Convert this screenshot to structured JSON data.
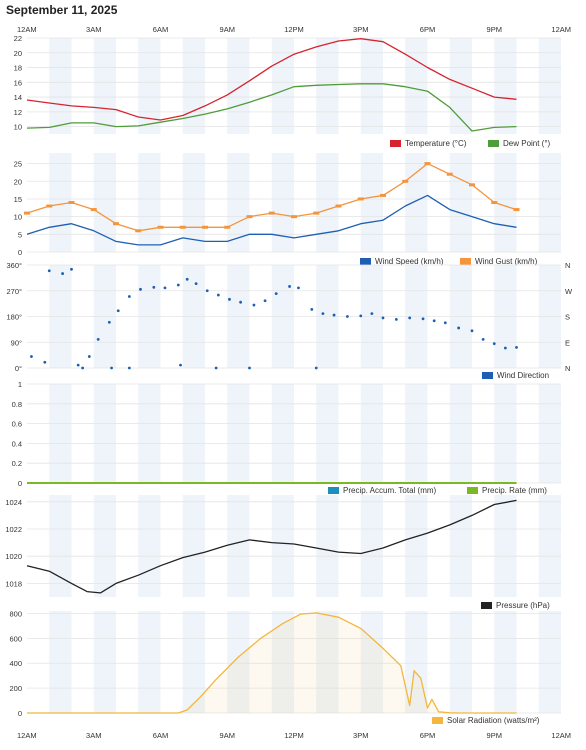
{
  "page_title": "September 11, 2025",
  "x_ticks": [
    "12AM",
    "3AM",
    "6AM",
    "9AM",
    "12PM",
    "3PM",
    "6PM",
    "9PM",
    "12AM"
  ],
  "colors": {
    "temperature": "#d6242f",
    "dew_point": "#4f9c3a",
    "wind_speed": "#1e5fb4",
    "wind_gust": "#f5943b",
    "wind_direction": "#1e5fb4",
    "precip_total": "#1d8fbf",
    "precip_rate": "#7ab828",
    "pressure": "#222222",
    "solar": "#f4b63b",
    "band": "#eef4fa",
    "grid": "#e4e4e4"
  },
  "chart_data": [
    {
      "type": "line",
      "x_unit": "hour",
      "ylim": [
        9,
        22
      ],
      "y_ticks": [
        "10",
        "12",
        "14",
        "16",
        "18",
        "20",
        "22"
      ],
      "series": [
        {
          "name": "Temperature (°C)",
          "color_key": "temperature",
          "points": [
            [
              0,
              13.6
            ],
            [
              1,
              13.2
            ],
            [
              2,
              12.8
            ],
            [
              3,
              12.6
            ],
            [
              4,
              12.3
            ],
            [
              5,
              11.3
            ],
            [
              6,
              10.9
            ],
            [
              7,
              11.5
            ],
            [
              8,
              12.8
            ],
            [
              9,
              14.3
            ],
            [
              10,
              16.2
            ],
            [
              11,
              18.2
            ],
            [
              12,
              19.8
            ],
            [
              13,
              20.8
            ],
            [
              14,
              21.6
            ],
            [
              15,
              21.9
            ],
            [
              16,
              21.5
            ],
            [
              17,
              19.8
            ],
            [
              18,
              18.0
            ],
            [
              19,
              16.4
            ],
            [
              20,
              15.2
            ],
            [
              21,
              14.0
            ],
            [
              22,
              13.7
            ]
          ]
        },
        {
          "name": "Dew Point (°)",
          "color_key": "dew_point",
          "points": [
            [
              0,
              9.8
            ],
            [
              1,
              9.9
            ],
            [
              2,
              10.5
            ],
            [
              3,
              10.5
            ],
            [
              4,
              10.0
            ],
            [
              5,
              10.1
            ],
            [
              6,
              10.6
            ],
            [
              7,
              11.1
            ],
            [
              8,
              11.7
            ],
            [
              9,
              12.4
            ],
            [
              10,
              13.3
            ],
            [
              11,
              14.3
            ],
            [
              12,
              15.4
            ],
            [
              13,
              15.6
            ],
            [
              14,
              15.7
            ],
            [
              15,
              15.8
            ],
            [
              16,
              15.8
            ],
            [
              17,
              15.4
            ],
            [
              18,
              14.8
            ],
            [
              19,
              12.6
            ],
            [
              20,
              9.4
            ],
            [
              21,
              9.9
            ],
            [
              22,
              10.0
            ]
          ]
        }
      ]
    },
    {
      "type": "line",
      "x_unit": "hour",
      "ylim": [
        0,
        28
      ],
      "y_ticks": [
        "0",
        "5",
        "10",
        "15",
        "20",
        "25"
      ],
      "series": [
        {
          "name": "Wind Speed (km/h)",
          "color_key": "wind_speed",
          "points": [
            [
              0,
              5
            ],
            [
              1,
              7
            ],
            [
              2,
              8
            ],
            [
              3,
              6
            ],
            [
              4,
              3
            ],
            [
              5,
              2
            ],
            [
              6,
              2
            ],
            [
              7,
              4
            ],
            [
              8,
              3
            ],
            [
              9,
              3
            ],
            [
              10,
              5
            ],
            [
              11,
              5
            ],
            [
              12,
              4
            ],
            [
              13,
              5
            ],
            [
              14,
              6
            ],
            [
              15,
              8
            ],
            [
              16,
              9
            ],
            [
              17,
              13
            ],
            [
              18,
              16
            ],
            [
              19,
              12
            ],
            [
              20,
              10
            ],
            [
              21,
              8
            ],
            [
              22,
              7
            ]
          ]
        },
        {
          "name": "Wind Gust (km/h)",
          "color_key": "wind_gust",
          "points": [
            [
              0,
              11
            ],
            [
              1,
              13
            ],
            [
              2,
              14
            ],
            [
              3,
              12
            ],
            [
              4,
              8
            ],
            [
              5,
              6
            ],
            [
              6,
              7
            ],
            [
              7,
              7
            ],
            [
              8,
              7
            ],
            [
              9,
              7
            ],
            [
              10,
              10
            ],
            [
              11,
              11
            ],
            [
              12,
              10
            ],
            [
              13,
              11
            ],
            [
              14,
              13
            ],
            [
              15,
              15
            ],
            [
              16,
              16
            ],
            [
              17,
              20
            ],
            [
              18,
              25
            ],
            [
              19,
              22
            ],
            [
              20,
              19
            ],
            [
              21,
              14
            ],
            [
              22,
              12
            ]
          ]
        }
      ]
    },
    {
      "type": "scatter",
      "x_unit": "hour",
      "ylim": [
        0,
        360
      ],
      "y_ticks": [
        "0°",
        "90°",
        "180°",
        "270°",
        "360°"
      ],
      "y2_ticks": [
        "N",
        "E",
        "S",
        "W",
        "N"
      ],
      "series": [
        {
          "name": "Wind Direction",
          "color_key": "wind_direction",
          "points": [
            [
              0.2,
              40
            ],
            [
              0.8,
              20
            ],
            [
              1.0,
              340
            ],
            [
              1.6,
              330
            ],
            [
              2.0,
              345
            ],
            [
              2.3,
              10
            ],
            [
              2.8,
              40
            ],
            [
              3.2,
              100
            ],
            [
              3.7,
              160
            ],
            [
              4.1,
              200
            ],
            [
              4.6,
              250
            ],
            [
              5.1,
              275
            ],
            [
              5.7,
              282
            ],
            [
              6.2,
              280
            ],
            [
              6.8,
              290
            ],
            [
              7.2,
              310
            ],
            [
              7.6,
              295
            ],
            [
              8.1,
              270
            ],
            [
              8.6,
              255
            ],
            [
              9.1,
              240
            ],
            [
              9.6,
              230
            ],
            [
              10.2,
              220
            ],
            [
              10.7,
              235
            ],
            [
              11.2,
              260
            ],
            [
              11.8,
              285
            ],
            [
              12.2,
              280
            ],
            [
              12.8,
              205
            ],
            [
              13.3,
              190
            ],
            [
              13.8,
              185
            ],
            [
              14.4,
              180
            ],
            [
              15.0,
              182
            ],
            [
              15.5,
              190
            ],
            [
              16.0,
              175
            ],
            [
              16.6,
              170
            ],
            [
              17.2,
              175
            ],
            [
              17.8,
              172
            ],
            [
              18.3,
              165
            ],
            [
              18.8,
              158
            ],
            [
              19.4,
              140
            ],
            [
              20.0,
              130
            ],
            [
              20.5,
              100
            ],
            [
              21.0,
              85
            ],
            [
              21.5,
              70
            ],
            [
              22.0,
              72
            ],
            [
              2.5,
              0
            ],
            [
              3.8,
              0
            ],
            [
              4.6,
              0
            ],
            [
              6.9,
              10
            ],
            [
              8.5,
              0
            ],
            [
              10.0,
              0
            ],
            [
              13.0,
              0
            ]
          ]
        }
      ]
    },
    {
      "type": "line",
      "x_unit": "hour",
      "ylim": [
        0,
        1
      ],
      "y_ticks": [
        "0",
        "0.2",
        "0.4",
        "0.6",
        "0.8",
        "1"
      ],
      "series": [
        {
          "name": "Precip. Accum. Total (mm)",
          "color_key": "precip_total",
          "points": [
            [
              0,
              0
            ],
            [
              22,
              0
            ]
          ]
        },
        {
          "name": "Precip. Rate (mm)",
          "color_key": "precip_rate",
          "points": [
            [
              0,
              0
            ],
            [
              22,
              0
            ]
          ]
        }
      ]
    },
    {
      "type": "line",
      "x_unit": "hour",
      "ylim": [
        1017,
        1024.5
      ],
      "y_ticks": [
        "1018",
        "1020",
        "1022",
        "1024"
      ],
      "series": [
        {
          "name": "Pressure (hPa)",
          "color_key": "pressure",
          "points": [
            [
              0,
              1019.3
            ],
            [
              1,
              1018.9
            ],
            [
              2,
              1018.0
            ],
            [
              2.7,
              1017.4
            ],
            [
              3.3,
              1017.3
            ],
            [
              4,
              1018.0
            ],
            [
              5,
              1018.6
            ],
            [
              6,
              1019.3
            ],
            [
              7,
              1019.9
            ],
            [
              8,
              1020.3
            ],
            [
              9,
              1020.8
            ],
            [
              10,
              1021.2
            ],
            [
              11,
              1021.0
            ],
            [
              12,
              1020.9
            ],
            [
              13,
              1020.6
            ],
            [
              14,
              1020.3
            ],
            [
              15,
              1020.2
            ],
            [
              16,
              1020.6
            ],
            [
              17,
              1021.2
            ],
            [
              18,
              1021.7
            ],
            [
              19,
              1022.3
            ],
            [
              20,
              1023.0
            ],
            [
              21,
              1023.8
            ],
            [
              22,
              1024.1
            ]
          ]
        }
      ]
    },
    {
      "type": "area",
      "x_unit": "hour",
      "ylim": [
        0,
        820
      ],
      "y_ticks": [
        "0",
        "200",
        "400",
        "600",
        "800"
      ],
      "series": [
        {
          "name": "Solar Radiation (watts/m²)",
          "color_key": "solar",
          "points": [
            [
              0,
              0
            ],
            [
              6,
              0
            ],
            [
              6.8,
              0
            ],
            [
              7.2,
              25
            ],
            [
              7.8,
              130
            ],
            [
              8.5,
              270
            ],
            [
              9.5,
              450
            ],
            [
              10.5,
              600
            ],
            [
              11.5,
              720
            ],
            [
              12.3,
              795
            ],
            [
              13,
              805
            ],
            [
              14,
              770
            ],
            [
              15,
              680
            ],
            [
              16,
              520
            ],
            [
              16.8,
              380
            ],
            [
              17.2,
              60
            ],
            [
              17.4,
              340
            ],
            [
              17.7,
              280
            ],
            [
              18,
              40
            ],
            [
              18.2,
              110
            ],
            [
              18.5,
              10
            ],
            [
              19,
              2
            ],
            [
              19.5,
              0
            ],
            [
              22,
              0
            ]
          ]
        }
      ]
    }
  ]
}
